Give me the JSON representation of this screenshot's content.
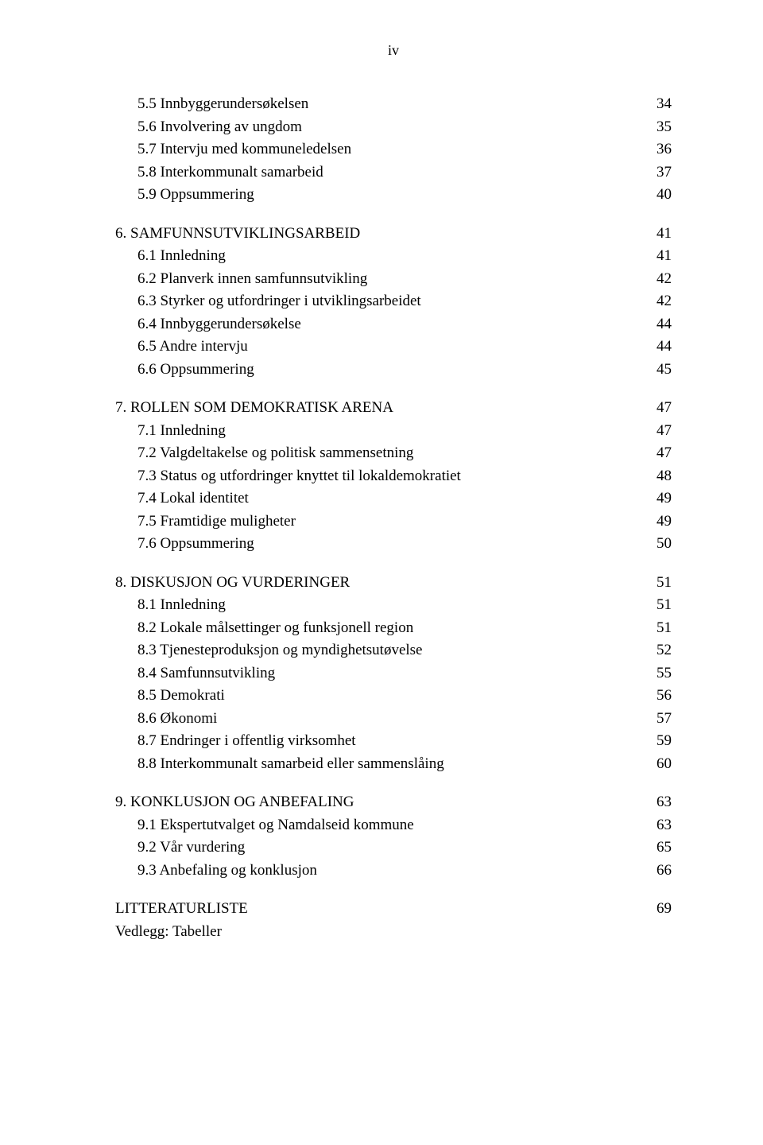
{
  "pageNumber": "iv",
  "sections": [
    {
      "items": [
        {
          "num": "5.5",
          "title": "Innbyggerundersøkelsen",
          "page": "34",
          "sub": true
        },
        {
          "num": "5.6",
          "title": "Involvering av ungdom",
          "page": "35",
          "sub": true
        },
        {
          "num": "5.7",
          "title": "Intervju med kommuneledelsen",
          "page": "36",
          "sub": true
        },
        {
          "num": "5.8",
          "title": "Interkommunalt samarbeid",
          "page": "37",
          "sub": true
        },
        {
          "num": "5.9",
          "title": "Oppsummering",
          "page": "40",
          "sub": true
        }
      ]
    },
    {
      "items": [
        {
          "num": "6.",
          "title": "SAMFUNNSUTVIKLINGSARBEID",
          "page": "41",
          "sub": false
        },
        {
          "num": "6.1",
          "title": "Innledning",
          "page": "41",
          "sub": true
        },
        {
          "num": "6.2",
          "title": "Planverk innen samfunnsutvikling",
          "page": "42",
          "sub": true
        },
        {
          "num": "6.3",
          "title": "Styrker og utfordringer i utviklingsarbeidet",
          "page": "42",
          "sub": true
        },
        {
          "num": "6.4",
          "title": "Innbyggerundersøkelse",
          "page": "44",
          "sub": true
        },
        {
          "num": "6.5",
          "title": "Andre intervju",
          "page": "44",
          "sub": true
        },
        {
          "num": "6.6",
          "title": "Oppsummering",
          "page": "45",
          "sub": true
        }
      ]
    },
    {
      "items": [
        {
          "num": "7.",
          "title": "ROLLEN SOM DEMOKRATISK ARENA",
          "page": "47",
          "sub": false
        },
        {
          "num": "7.1",
          "title": "Innledning",
          "page": "47",
          "sub": true
        },
        {
          "num": "7.2",
          "title": "Valgdeltakelse og politisk sammensetning",
          "page": "47",
          "sub": true
        },
        {
          "num": "7.3",
          "title": "Status og utfordringer knyttet til lokaldemokratiet",
          "page": "48",
          "sub": true
        },
        {
          "num": "7.4",
          "title": "Lokal identitet",
          "page": "49",
          "sub": true
        },
        {
          "num": "7.5",
          "title": "Framtidige muligheter",
          "page": "49",
          "sub": true
        },
        {
          "num": "7.6",
          "title": "Oppsummering",
          "page": "50",
          "sub": true
        }
      ]
    },
    {
      "items": [
        {
          "num": "8.",
          "title": "DISKUSJON OG VURDERINGER",
          "page": "51",
          "sub": false
        },
        {
          "num": "8.1",
          "title": "Innledning",
          "page": "51",
          "sub": true
        },
        {
          "num": "8.2",
          "title": "Lokale målsettinger og funksjonell region",
          "page": "51",
          "sub": true
        },
        {
          "num": "8.3",
          "title": "Tjenesteproduksjon og myndighetsutøvelse",
          "page": "52",
          "sub": true
        },
        {
          "num": "8.4",
          "title": "Samfunnsutvikling",
          "page": "55",
          "sub": true
        },
        {
          "num": "8.5",
          "title": "Demokrati",
          "page": "56",
          "sub": true
        },
        {
          "num": "8.6",
          "title": "Økonomi",
          "page": "57",
          "sub": true
        },
        {
          "num": "8.7",
          "title": "Endringer i offentlig virksomhet",
          "page": "59",
          "sub": true
        },
        {
          "num": "8.8",
          "title": "Interkommunalt samarbeid eller sammenslåing",
          "page": "60",
          "sub": true
        }
      ]
    },
    {
      "items": [
        {
          "num": "9.",
          "title": "KONKLUSJON OG ANBEFALING",
          "page": "63",
          "sub": false
        },
        {
          "num": "9.1",
          "title": "Ekspertutvalget og Namdalseid kommune",
          "page": "63",
          "sub": true
        },
        {
          "num": "9.2",
          "title": "Vår vurdering",
          "page": "65",
          "sub": true
        },
        {
          "num": "9.3",
          "title": "Anbefaling og konklusjon",
          "page": "66",
          "sub": true
        }
      ]
    }
  ],
  "literature": {
    "title": "LITTERATURLISTE",
    "page": "69"
  },
  "appendix": "Vedlegg: Tabeller"
}
